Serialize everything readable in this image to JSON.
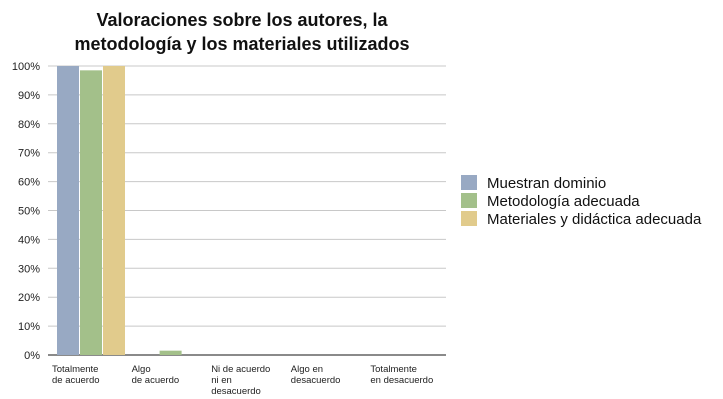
{
  "chart_data": {
    "type": "bar",
    "title_lines": [
      "Valoraciones sobre los autores, la",
      "metodología y los materiales utilizados"
    ],
    "categories": [
      [
        "Totalmente",
        "de acuerdo"
      ],
      [
        "Algo",
        "de acuerdo"
      ],
      [
        "Ni de acuerdo",
        "ni en",
        "desacuerdo"
      ],
      [
        "Algo en",
        "desacuerdo"
      ],
      [
        "Totalmente",
        "en desacuerdo"
      ]
    ],
    "series": [
      {
        "name": "Muestran dominio",
        "color": "#98a9c3",
        "values": [
          100,
          0,
          0,
          0,
          0
        ]
      },
      {
        "name": "Metodología adecuada",
        "color": "#a3c08a",
        "values": [
          98.5,
          1.5,
          0,
          0,
          0
        ]
      },
      {
        "name": "Materiales y didáctica adecuada",
        "color": "#e1cb8c",
        "values": [
          100,
          0,
          0,
          0,
          0
        ]
      }
    ],
    "ylim": [
      0,
      100
    ],
    "yticks": [
      "0%",
      "10%",
      "20%",
      "30%",
      "40%",
      "50%",
      "60%",
      "70%",
      "80%",
      "90%",
      "100%"
    ],
    "grid": true,
    "legend_position": "right"
  }
}
